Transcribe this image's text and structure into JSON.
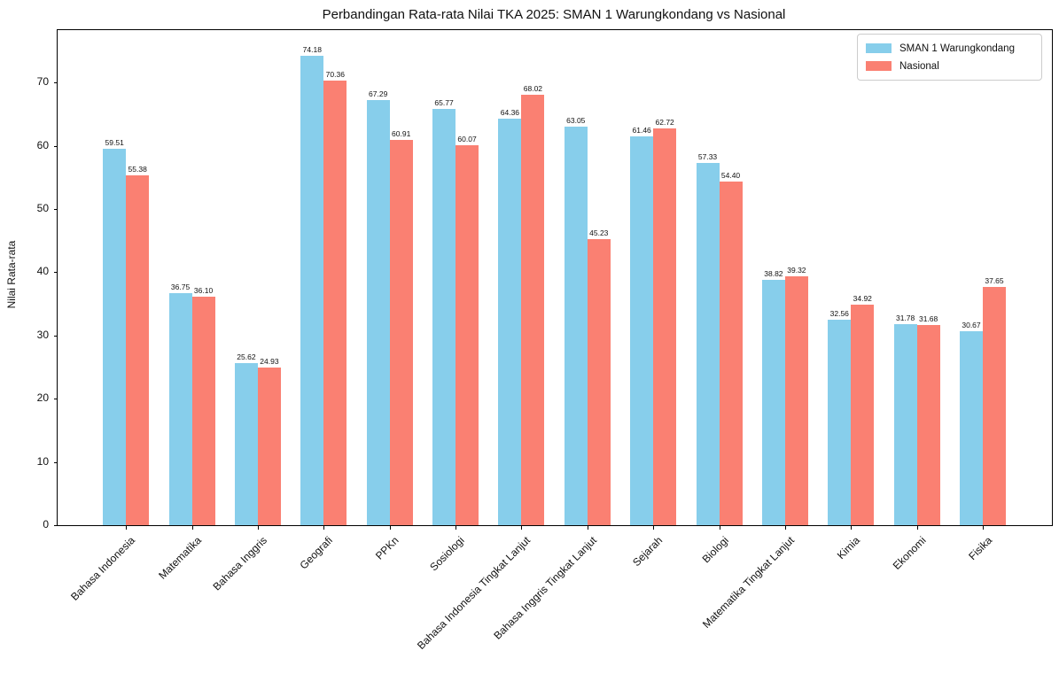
{
  "chart_data": {
    "type": "bar",
    "title": "Perbandingan Rata-rata Nilai TKA 2025: SMAN 1 Warungkondang vs Nasional",
    "ylabel": "Nilai Rata-rata",
    "xlabel": "",
    "categories": [
      "Bahasa Indonesia",
      "Matematika",
      "Bahasa Inggris",
      "Geografi",
      "PPKn",
      "Sosiologi",
      "Bahasa Indonesia Tingkat Lanjut",
      "Bahasa Inggris Tingkat Lanjut",
      "Sejarah",
      "Biologi",
      "Matematika Tingkat Lanjut",
      "Kimia",
      "Ekonomi",
      "Fisika"
    ],
    "series": [
      {
        "name": "SMAN 1 Warungkondang",
        "color": "#87CEEB",
        "values": [
          59.51,
          36.75,
          25.62,
          74.18,
          67.29,
          65.77,
          64.36,
          63.05,
          61.46,
          57.33,
          38.82,
          32.56,
          31.78,
          30.67
        ]
      },
      {
        "name": "Nasional",
        "color": "#FA8072",
        "values": [
          55.38,
          36.1,
          24.93,
          70.36,
          60.91,
          60.07,
          68.02,
          45.23,
          62.72,
          54.4,
          39.32,
          34.92,
          31.68,
          37.65
        ]
      }
    ],
    "yticks": [
      0,
      10,
      20,
      30,
      40,
      50,
      60,
      70
    ],
    "ylim": [
      0,
      78.3
    ],
    "value_labels_decimals": 2,
    "legend_position": "upper right",
    "grid": false,
    "axis_color": "#000000",
    "text_color": "#111111"
  }
}
